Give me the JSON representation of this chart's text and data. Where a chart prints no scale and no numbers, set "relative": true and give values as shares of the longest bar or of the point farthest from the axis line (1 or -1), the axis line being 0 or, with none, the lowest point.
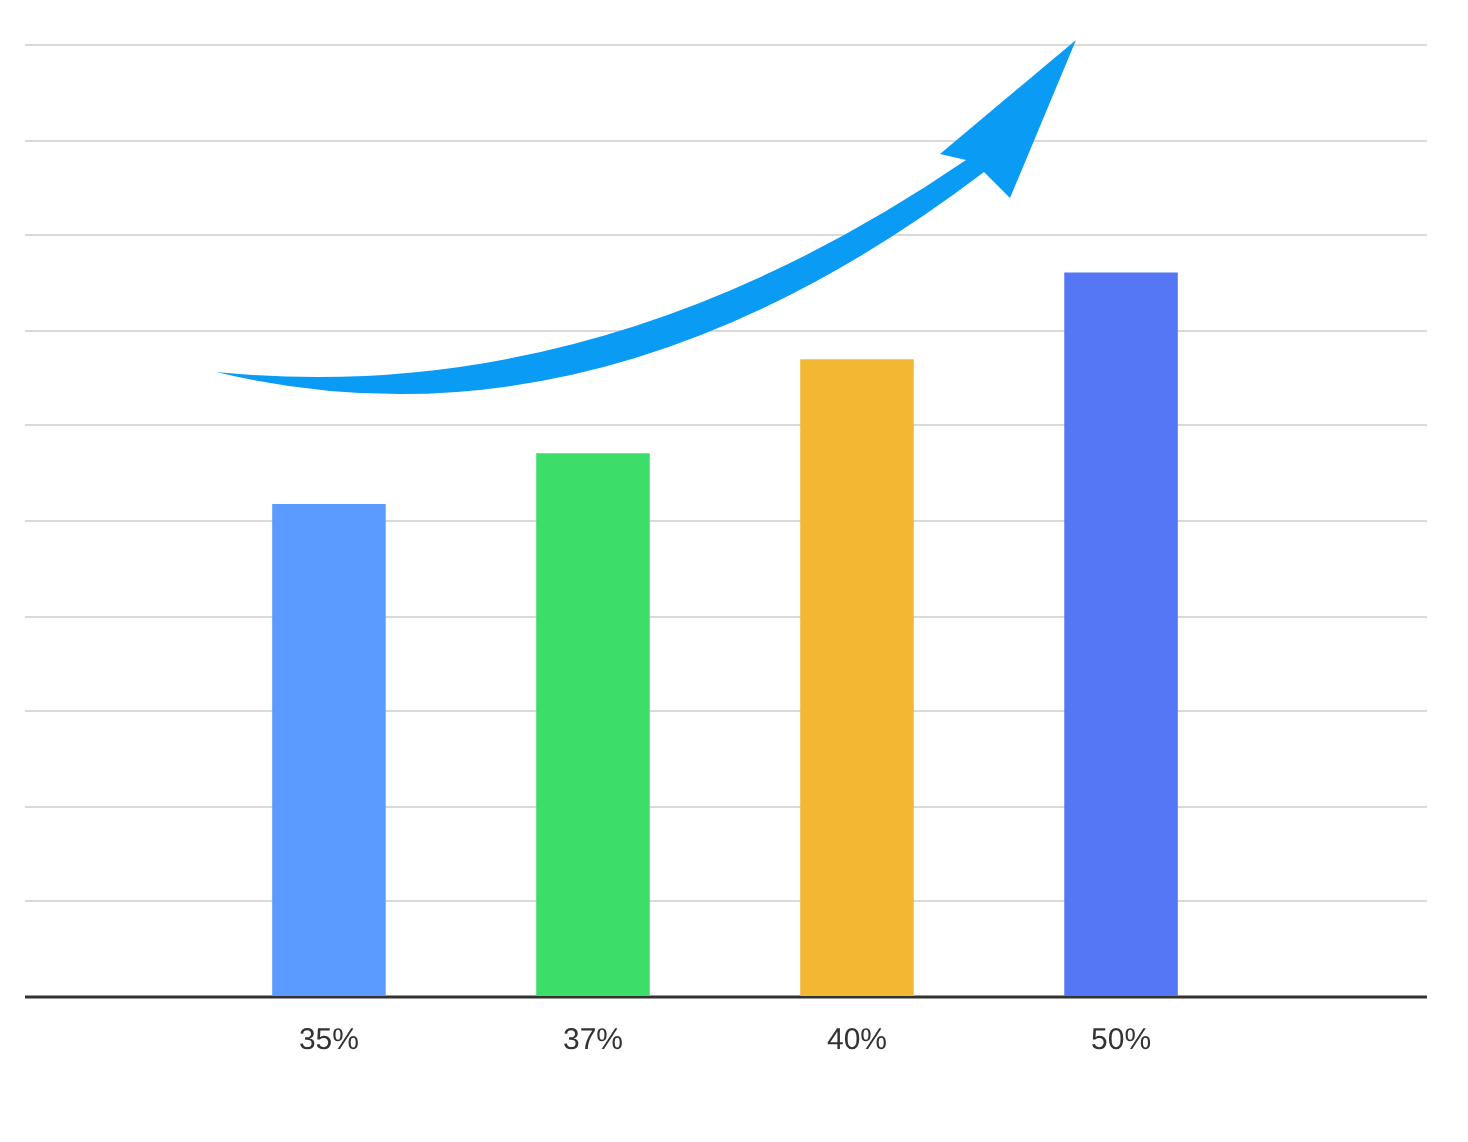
{
  "chart_data": {
    "type": "bar",
    "relative": true,
    "categories": [
      "35%",
      "37%",
      "40%",
      "50%"
    ],
    "values": [
      0.68,
      0.75,
      0.88,
      1
    ],
    "colors": [
      "#5b9aff",
      "#3ddd6a",
      "#f2b733",
      "#5577f5"
    ],
    "grid": "y",
    "legend": false
  }
}
